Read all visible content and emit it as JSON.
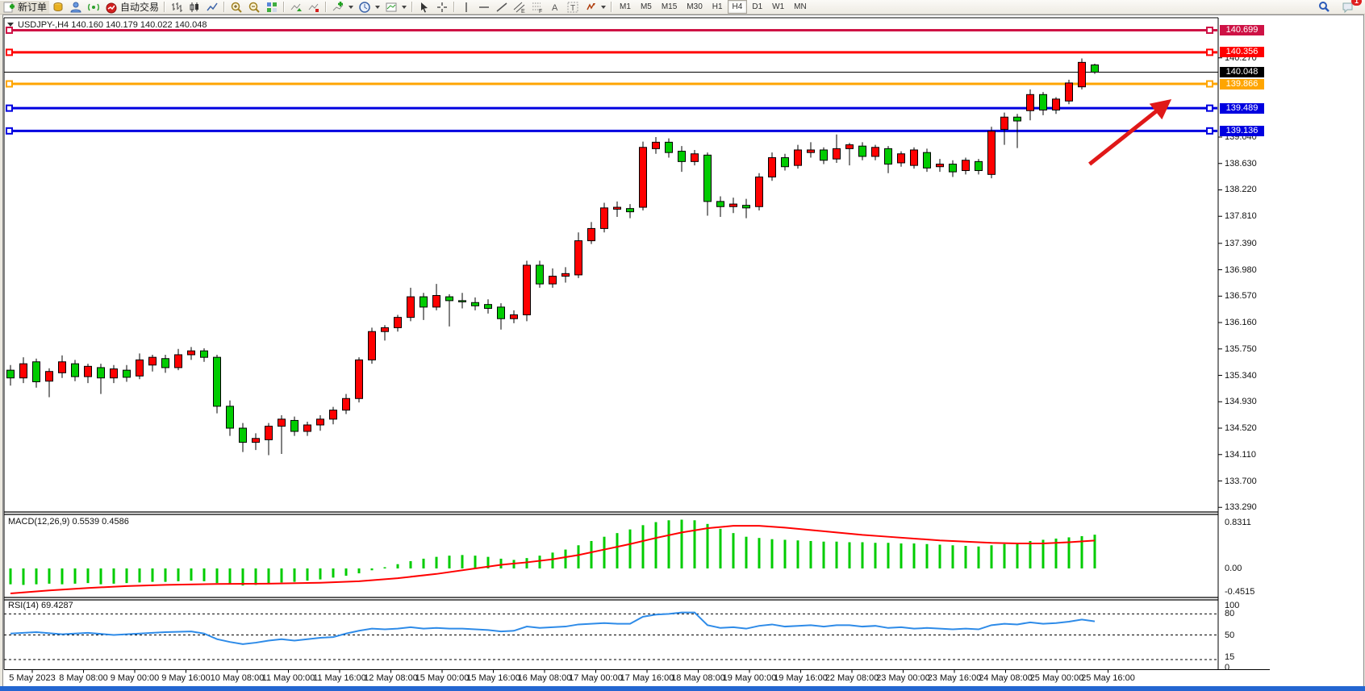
{
  "window": {
    "accent_blue_strip": "#2366d1"
  },
  "toolbar": {
    "new_order_label": "新订单",
    "autotrading_label": "自动交易",
    "icon_letters": {
      "text": "A",
      "label": "T",
      "channel": "E",
      "fibo": "F"
    },
    "timeframes": [
      "M1",
      "M5",
      "M15",
      "M30",
      "H1",
      "H4",
      "D1",
      "W1",
      "MN"
    ],
    "active_timeframe": "H4",
    "notification_count": "1"
  },
  "chart": {
    "title": "USDJPY-,H4  140.160 140.179 140.022 140.048",
    "symbol_period": "USDJPY-,H4",
    "open": "140.160",
    "high": "140.179",
    "low": "140.022",
    "close": "140.048"
  },
  "chart_data": {
    "type": "candlestick",
    "symbol": "USDJPY",
    "period": "H4",
    "colors": {
      "bull": "#ff0000",
      "bear": "#00cc00",
      "wick": "#000000",
      "macd_bar": "#00cc00",
      "macd_signal": "#ff0000",
      "rsi_line": "#2e8be8",
      "hline_crimson": "#ce1245",
      "hline_red": "#ff0000",
      "hline_orange": "#ffa500",
      "hline_blue": "#0000e0",
      "current_price_line": "#000000",
      "arrow": "#e01818"
    },
    "candles": [
      [
        135.42,
        135.5,
        135.18,
        135.3
      ],
      [
        135.3,
        135.62,
        135.22,
        135.52
      ],
      [
        135.55,
        135.6,
        135.15,
        135.24
      ],
      [
        135.25,
        135.45,
        135.0,
        135.4
      ],
      [
        135.38,
        135.65,
        135.3,
        135.55
      ],
      [
        135.52,
        135.58,
        135.25,
        135.32
      ],
      [
        135.32,
        135.52,
        135.22,
        135.48
      ],
      [
        135.46,
        135.52,
        135.05,
        135.3
      ],
      [
        135.3,
        135.5,
        135.22,
        135.44
      ],
      [
        135.42,
        135.5,
        135.24,
        135.31
      ],
      [
        135.33,
        135.68,
        135.28,
        135.58
      ],
      [
        135.5,
        135.66,
        135.4,
        135.62
      ],
      [
        135.6,
        135.66,
        135.38,
        135.46
      ],
      [
        135.46,
        135.75,
        135.42,
        135.66
      ],
      [
        135.66,
        135.78,
        135.58,
        135.72
      ],
      [
        135.72,
        135.76,
        135.55,
        135.62
      ],
      [
        135.62,
        135.66,
        134.75,
        134.86
      ],
      [
        134.86,
        134.95,
        134.4,
        134.52
      ],
      [
        134.52,
        134.6,
        134.15,
        134.3
      ],
      [
        134.3,
        134.44,
        134.18,
        134.36
      ],
      [
        134.34,
        134.6,
        134.1,
        134.55
      ],
      [
        134.55,
        134.72,
        134.12,
        134.66
      ],
      [
        134.64,
        134.7,
        134.4,
        134.47
      ],
      [
        134.47,
        134.62,
        134.4,
        134.57
      ],
      [
        134.57,
        134.72,
        134.48,
        134.66
      ],
      [
        134.66,
        134.85,
        134.58,
        134.8
      ],
      [
        134.8,
        135.05,
        134.74,
        134.98
      ],
      [
        134.98,
        135.62,
        134.92,
        135.58
      ],
      [
        135.58,
        136.08,
        135.52,
        136.02
      ],
      [
        136.02,
        136.12,
        135.88,
        136.08
      ],
      [
        136.08,
        136.28,
        136.02,
        136.24
      ],
      [
        136.24,
        136.7,
        136.18,
        136.56
      ],
      [
        136.56,
        136.62,
        136.2,
        136.4
      ],
      [
        136.4,
        136.76,
        136.35,
        136.58
      ],
      [
        136.56,
        136.6,
        136.1,
        136.5
      ],
      [
        136.5,
        136.62,
        136.38,
        136.49
      ],
      [
        136.47,
        136.55,
        136.35,
        136.42
      ],
      [
        136.44,
        136.52,
        136.3,
        136.38
      ],
      [
        136.4,
        136.46,
        136.05,
        136.22
      ],
      [
        136.22,
        136.35,
        136.15,
        136.28
      ],
      [
        136.28,
        137.12,
        136.18,
        137.05
      ],
      [
        137.05,
        137.12,
        136.7,
        136.76
      ],
      [
        136.76,
        137.0,
        136.7,
        136.88
      ],
      [
        136.88,
        137.02,
        136.78,
        136.92
      ],
      [
        136.9,
        137.56,
        136.85,
        137.43
      ],
      [
        137.43,
        137.72,
        137.38,
        137.62
      ],
      [
        137.62,
        138.02,
        137.56,
        137.94
      ],
      [
        137.92,
        138.04,
        137.8,
        137.95
      ],
      [
        137.93,
        138.0,
        137.78,
        137.88
      ],
      [
        137.95,
        138.97,
        137.9,
        138.88
      ],
      [
        138.86,
        139.04,
        138.78,
        138.96
      ],
      [
        138.96,
        139.02,
        138.72,
        138.8
      ],
      [
        138.82,
        138.9,
        138.5,
        138.66
      ],
      [
        138.66,
        138.84,
        138.6,
        138.78
      ],
      [
        138.76,
        138.8,
        137.82,
        138.04
      ],
      [
        138.04,
        138.12,
        137.8,
        137.96
      ],
      [
        137.96,
        138.1,
        137.86,
        138.0
      ],
      [
        137.98,
        138.08,
        137.78,
        137.94
      ],
      [
        137.96,
        138.48,
        137.9,
        138.42
      ],
      [
        138.42,
        138.8,
        138.36,
        138.72
      ],
      [
        138.72,
        138.78,
        138.52,
        138.58
      ],
      [
        138.6,
        138.92,
        138.55,
        138.84
      ],
      [
        138.8,
        138.96,
        138.72,
        138.84
      ],
      [
        138.84,
        138.88,
        138.62,
        138.68
      ],
      [
        138.7,
        139.08,
        138.64,
        138.86
      ],
      [
        138.86,
        138.95,
        138.6,
        138.92
      ],
      [
        138.9,
        138.96,
        138.68,
        138.74
      ],
      [
        138.74,
        138.92,
        138.68,
        138.88
      ],
      [
        138.86,
        138.9,
        138.48,
        138.62
      ],
      [
        138.64,
        138.82,
        138.58,
        138.78
      ],
      [
        138.6,
        138.88,
        138.55,
        138.84
      ],
      [
        138.8,
        138.86,
        138.5,
        138.56
      ],
      [
        138.58,
        138.7,
        138.5,
        138.62
      ],
      [
        138.62,
        138.68,
        138.42,
        138.5
      ],
      [
        138.52,
        138.72,
        138.46,
        138.68
      ],
      [
        138.66,
        138.7,
        138.46,
        138.52
      ],
      [
        138.46,
        139.2,
        138.4,
        139.13
      ],
      [
        139.16,
        139.42,
        138.92,
        139.35
      ],
      [
        139.35,
        139.4,
        138.87,
        139.29
      ],
      [
        139.45,
        139.78,
        139.3,
        139.7
      ],
      [
        139.7,
        139.74,
        139.38,
        139.46
      ],
      [
        139.46,
        139.66,
        139.4,
        139.63
      ],
      [
        139.6,
        139.93,
        139.55,
        139.88
      ],
      [
        139.82,
        140.26,
        139.78,
        140.2
      ],
      [
        140.16,
        140.179,
        140.022,
        140.048
      ]
    ],
    "hlines": [
      {
        "price": 140.699,
        "label": "140.699",
        "color": "#ce1245",
        "width": 3
      },
      {
        "price": 140.356,
        "label": "140.356",
        "color": "#ff0000",
        "width": 3
      },
      {
        "price": 139.866,
        "label": "139.866",
        "color": "#ffa500",
        "width": 3
      },
      {
        "price": 139.489,
        "label": "139.489",
        "color": "#0000e0",
        "width": 3
      },
      {
        "price": 139.136,
        "label": "139.136",
        "color": "#0000e0",
        "width": 3
      }
    ],
    "current_price": {
      "value": 140.048,
      "label": "140.048",
      "badge_bg": "#000000"
    },
    "price_axis_ticks": [
      140.27,
      139.04,
      138.63,
      138.22,
      137.81,
      137.39,
      136.98,
      136.57,
      136.16,
      135.75,
      135.34,
      134.93,
      134.52,
      134.11,
      133.7,
      133.29
    ],
    "time_axis_labels": [
      "5 May 2023",
      "8 May 08:00",
      "9 May 00:00",
      "9 May 16:00",
      "10 May 08:00",
      "11 May 00:00",
      "11 May 16:00",
      "12 May 08:00",
      "15 May 00:00",
      "15 May 16:00",
      "16 May 08:00",
      "17 May 00:00",
      "17 May 16:00",
      "18 May 08:00",
      "19 May 00:00",
      "19 May 16:00",
      "22 May 08:00",
      "23 May 00:00",
      "23 May 16:00",
      "24 May 08:00",
      "25 May 00:00",
      "25 May 16:00"
    ],
    "arrow_annotation": {
      "from_index": 83.6,
      "from_price": 138.62,
      "to_index": 89.7,
      "to_price": 139.59
    },
    "macd": {
      "title": "MACD(12,26,9) 0.5539 0.4586",
      "current_macd": 0.5539,
      "current_signal": 0.4586,
      "axis_labels": [
        "0.8311",
        "0.00",
        "-0.4515"
      ],
      "max": 0.8311,
      "min": -0.4515,
      "histogram": [
        -0.26,
        -0.27,
        -0.26,
        -0.25,
        -0.26,
        -0.25,
        -0.24,
        -0.26,
        -0.25,
        -0.24,
        -0.23,
        -0.22,
        -0.22,
        -0.21,
        -0.2,
        -0.21,
        -0.24,
        -0.26,
        -0.28,
        -0.27,
        -0.25,
        -0.23,
        -0.22,
        -0.2,
        -0.18,
        -0.15,
        -0.12,
        -0.08,
        -0.03,
        0.02,
        0.07,
        0.12,
        0.16,
        0.19,
        0.21,
        0.22,
        0.21,
        0.19,
        0.16,
        0.14,
        0.17,
        0.21,
        0.26,
        0.31,
        0.38,
        0.45,
        0.52,
        0.58,
        0.64,
        0.71,
        0.76,
        0.79,
        0.8,
        0.79,
        0.73,
        0.65,
        0.58,
        0.52,
        0.5,
        0.48,
        0.47,
        0.46,
        0.45,
        0.44,
        0.44,
        0.43,
        0.43,
        0.42,
        0.42,
        0.41,
        0.41,
        0.4,
        0.39,
        0.38,
        0.37,
        0.36,
        0.38,
        0.4,
        0.42,
        0.45,
        0.47,
        0.49,
        0.51,
        0.53,
        0.5539
      ],
      "signal_points": [
        [
          0,
          -0.41
        ],
        [
          3,
          -0.36
        ],
        [
          6,
          -0.32
        ],
        [
          9,
          -0.29
        ],
        [
          12,
          -0.27
        ],
        [
          16,
          -0.255
        ],
        [
          20,
          -0.25
        ],
        [
          24,
          -0.235
        ],
        [
          27,
          -0.21
        ],
        [
          30,
          -0.16
        ],
        [
          33,
          -0.09
        ],
        [
          36,
          0.0
        ],
        [
          38,
          0.06
        ],
        [
          40,
          0.1
        ],
        [
          42,
          0.15
        ],
        [
          44,
          0.22
        ],
        [
          46,
          0.31
        ],
        [
          48,
          0.4
        ],
        [
          50,
          0.5
        ],
        [
          52,
          0.59
        ],
        [
          54,
          0.66
        ],
        [
          56,
          0.7
        ],
        [
          58,
          0.7
        ],
        [
          60,
          0.67
        ],
        [
          62,
          0.63
        ],
        [
          64,
          0.59
        ],
        [
          66,
          0.55
        ],
        [
          68,
          0.52
        ],
        [
          70,
          0.49
        ],
        [
          72,
          0.46
        ],
        [
          74,
          0.44
        ],
        [
          76,
          0.42
        ],
        [
          78,
          0.41
        ],
        [
          80,
          0.41
        ],
        [
          82,
          0.43
        ],
        [
          84,
          0.4586
        ]
      ]
    },
    "rsi": {
      "title": "RSI(14) 69.4287",
      "current": 69.4287,
      "levels": [
        80,
        50,
        15
      ],
      "axis_labels": [
        "100",
        "80",
        "50",
        "15",
        "0"
      ],
      "points": [
        [
          0,
          52
        ],
        [
          2,
          54
        ],
        [
          4,
          51
        ],
        [
          6,
          53
        ],
        [
          8,
          50
        ],
        [
          10,
          52
        ],
        [
          12,
          54
        ],
        [
          14,
          55
        ],
        [
          15,
          52
        ],
        [
          16,
          44
        ],
        [
          17,
          40
        ],
        [
          18,
          37
        ],
        [
          19,
          39
        ],
        [
          20,
          42
        ],
        [
          21,
          44
        ],
        [
          22,
          42
        ],
        [
          23,
          44
        ],
        [
          24,
          46
        ],
        [
          25,
          47
        ],
        [
          26,
          52
        ],
        [
          27,
          56
        ],
        [
          28,
          59
        ],
        [
          29,
          58
        ],
        [
          30,
          59
        ],
        [
          31,
          61
        ],
        [
          32,
          59
        ],
        [
          33,
          60
        ],
        [
          34,
          59
        ],
        [
          35,
          59
        ],
        [
          36,
          58
        ],
        [
          37,
          57
        ],
        [
          38,
          55
        ],
        [
          39,
          56
        ],
        [
          40,
          62
        ],
        [
          41,
          60
        ],
        [
          42,
          61
        ],
        [
          43,
          62
        ],
        [
          44,
          65
        ],
        [
          45,
          66
        ],
        [
          46,
          67
        ],
        [
          47,
          66
        ],
        [
          48,
          66
        ],
        [
          49,
          76
        ],
        [
          50,
          79
        ],
        [
          51,
          80
        ],
        [
          52,
          82
        ],
        [
          53,
          82
        ],
        [
          54,
          64
        ],
        [
          55,
          60
        ],
        [
          56,
          61
        ],
        [
          57,
          59
        ],
        [
          58,
          63
        ],
        [
          59,
          65
        ],
        [
          60,
          62
        ],
        [
          61,
          63
        ],
        [
          62,
          64
        ],
        [
          63,
          62
        ],
        [
          64,
          64
        ],
        [
          65,
          64
        ],
        [
          66,
          62
        ],
        [
          67,
          63
        ],
        [
          68,
          60
        ],
        [
          69,
          61
        ],
        [
          70,
          59
        ],
        [
          71,
          60
        ],
        [
          72,
          59
        ],
        [
          73,
          58
        ],
        [
          74,
          59
        ],
        [
          75,
          58
        ],
        [
          76,
          64
        ],
        [
          77,
          66
        ],
        [
          78,
          65
        ],
        [
          79,
          68
        ],
        [
          80,
          66
        ],
        [
          81,
          67
        ],
        [
          82,
          69
        ],
        [
          83,
          72
        ],
        [
          84,
          69.4
        ]
      ]
    }
  }
}
